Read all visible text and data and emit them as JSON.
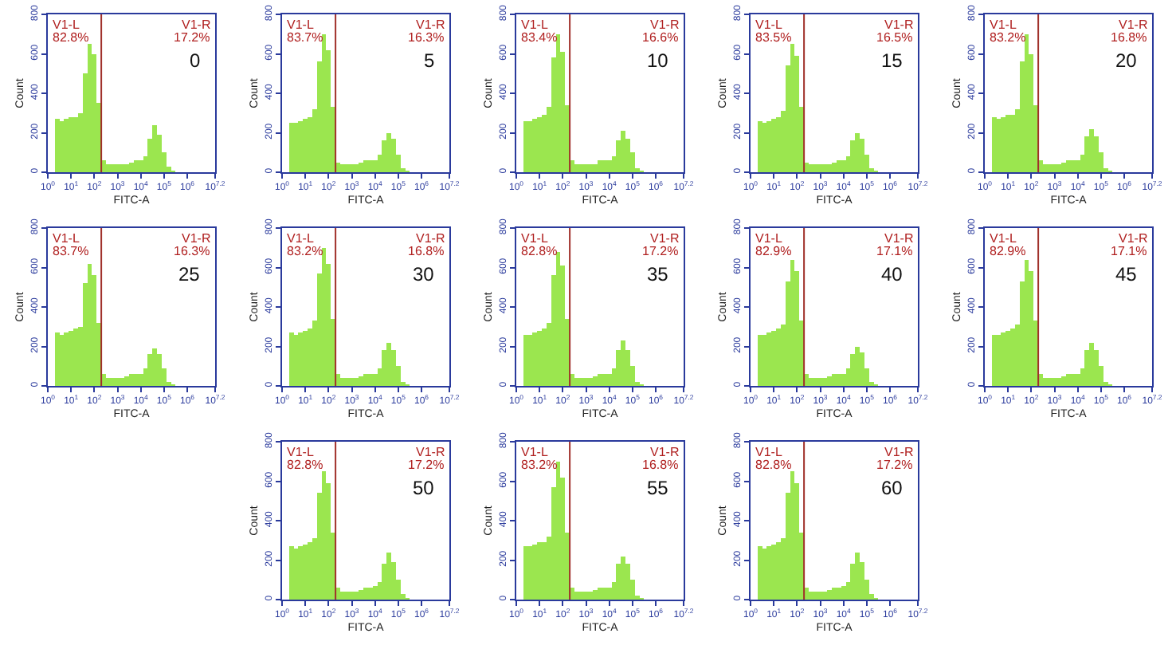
{
  "chart_data": [
    {
      "type": "histogram",
      "log": "x",
      "xlabel": "FITC-A",
      "ylabel": "Count",
      "color": "#9be64f",
      "bins": [
        2,
        3.2,
        5,
        7.9,
        12.6,
        20,
        31.6,
        50,
        79,
        126,
        200,
        316,
        501,
        794,
        1259,
        1995,
        3162,
        5012,
        7943,
        12589,
        19953,
        31623,
        50119,
        79433,
        125893,
        199526,
        316228
      ],
      "values": [
        270,
        260,
        270,
        280,
        280,
        300,
        500,
        650,
        600,
        350,
        60,
        40,
        40,
        40,
        40,
        40,
        50,
        60,
        60,
        80,
        170,
        240,
        190,
        100,
        30,
        10
      ],
      "xlim": [
        1,
        15848932
      ],
      "xticks": [
        {
          "value": 1,
          "label": "10$^{0}$"
        },
        {
          "value": 10,
          "label": "10$^{1}$"
        },
        {
          "value": 100,
          "label": "10$^{2}$"
        },
        {
          "value": 1000,
          "label": "10$^{3}$"
        },
        {
          "value": 10000,
          "label": "10$^{4}$"
        },
        {
          "value": 100000,
          "label": "10$^{5}$"
        },
        {
          "value": 1000000,
          "label": "10$^{6}$"
        },
        {
          "value": 15848932,
          "label": "10$^{7.2}$"
        }
      ],
      "ylim": [
        0,
        800
      ],
      "yticks": [
        0,
        200,
        400,
        600,
        800
      ],
      "ref_lines": [
        {
          "axis": "x",
          "value": 200,
          "color": "#a0302a"
        }
      ],
      "annotations": [
        "V1-L",
        "82.8%",
        "V1-R",
        "17.2%",
        "0"
      ]
    },
    {
      "type": "histogram",
      "log": "x",
      "xlabel": "FITC-A",
      "ylabel": "Count",
      "color": "#9be64f",
      "bins": [
        2,
        3.2,
        5,
        7.9,
        12.6,
        20,
        31.6,
        50,
        79,
        126,
        200,
        316,
        501,
        794,
        1259,
        1995,
        3162,
        5012,
        7943,
        12589,
        19953,
        31623,
        50119,
        79433,
        125893,
        199526,
        316228
      ],
      "values": [
        250,
        250,
        260,
        270,
        280,
        320,
        560,
        700,
        620,
        330,
        50,
        40,
        40,
        40,
        40,
        50,
        60,
        60,
        60,
        90,
        160,
        200,
        170,
        90,
        20,
        10
      ],
      "xlim": [
        1,
        15848932
      ],
      "xticks": [
        {
          "value": 1,
          "label": "10$^{0}$"
        },
        {
          "value": 10,
          "label": "10$^{1}$"
        },
        {
          "value": 100,
          "label": "10$^{2}$"
        },
        {
          "value": 1000,
          "label": "10$^{3}$"
        },
        {
          "value": 10000,
          "label": "10$^{4}$"
        },
        {
          "value": 100000,
          "label": "10$^{5}$"
        },
        {
          "value": 1000000,
          "label": "10$^{6}$"
        },
        {
          "value": 15848932,
          "label": "10$^{7.2}$"
        }
      ],
      "ylim": [
        0,
        800
      ],
      "yticks": [
        0,
        200,
        400,
        600,
        800
      ],
      "ref_lines": [
        {
          "axis": "x",
          "value": 200,
          "color": "#a0302a"
        }
      ],
      "annotations": [
        "V1-L",
        "83.7%",
        "V1-R",
        "16.3%",
        "5"
      ]
    },
    {
      "type": "histogram",
      "log": "x",
      "xlabel": "FITC-A",
      "ylabel": "Count",
      "color": "#9be64f",
      "bins": [
        2,
        3.2,
        5,
        7.9,
        12.6,
        20,
        31.6,
        50,
        79,
        126,
        200,
        316,
        501,
        794,
        1259,
        1995,
        3162,
        5012,
        7943,
        12589,
        19953,
        31623,
        50119,
        79433,
        125893,
        199526,
        316228
      ],
      "values": [
        260,
        260,
        270,
        280,
        290,
        330,
        580,
        700,
        610,
        340,
        60,
        40,
        40,
        40,
        40,
        40,
        60,
        60,
        60,
        80,
        160,
        210,
        170,
        100,
        20,
        10
      ],
      "xlim": [
        1,
        15848932
      ],
      "xticks": [
        {
          "value": 1,
          "label": "10$^{0}$"
        },
        {
          "value": 10,
          "label": "10$^{1}$"
        },
        {
          "value": 100,
          "label": "10$^{2}$"
        },
        {
          "value": 1000,
          "label": "10$^{3}$"
        },
        {
          "value": 10000,
          "label": "10$^{4}$"
        },
        {
          "value": 100000,
          "label": "10$^{5}$"
        },
        {
          "value": 1000000,
          "label": "10$^{6}$"
        },
        {
          "value": 15848932,
          "label": "10$^{7.2}$"
        }
      ],
      "ylim": [
        0,
        800
      ],
      "yticks": [
        0,
        200,
        400,
        600,
        800
      ],
      "ref_lines": [
        {
          "axis": "x",
          "value": 200,
          "color": "#a0302a"
        }
      ],
      "annotations": [
        "V1-L",
        "83.4%",
        "V1-R",
        "16.6%",
        "10"
      ]
    },
    {
      "type": "histogram",
      "log": "x",
      "xlabel": "FITC-A",
      "ylabel": "Count",
      "color": "#9be64f",
      "bins": [
        2,
        3.2,
        5,
        7.9,
        12.6,
        20,
        31.6,
        50,
        79,
        126,
        200,
        316,
        501,
        794,
        1259,
        1995,
        3162,
        5012,
        7943,
        12589,
        19953,
        31623,
        50119,
        79433,
        125893,
        199526,
        316228
      ],
      "values": [
        260,
        250,
        260,
        270,
        280,
        310,
        540,
        650,
        590,
        330,
        50,
        40,
        40,
        40,
        40,
        40,
        50,
        60,
        60,
        80,
        160,
        200,
        170,
        90,
        20,
        10
      ],
      "xlim": [
        1,
        15848932
      ],
      "xticks": [
        {
          "value": 1,
          "label": "10$^{0}$"
        },
        {
          "value": 10,
          "label": "10$^{1}$"
        },
        {
          "value": 100,
          "label": "10$^{2}$"
        },
        {
          "value": 1000,
          "label": "10$^{3}$"
        },
        {
          "value": 10000,
          "label": "10$^{4}$"
        },
        {
          "value": 100000,
          "label": "10$^{5}$"
        },
        {
          "value": 1000000,
          "label": "10$^{6}$"
        },
        {
          "value": 15848932,
          "label": "10$^{7.2}$"
        }
      ],
      "ylim": [
        0,
        800
      ],
      "yticks": [
        0,
        200,
        400,
        600,
        800
      ],
      "ref_lines": [
        {
          "axis": "x",
          "value": 200,
          "color": "#a0302a"
        }
      ],
      "annotations": [
        "V1-L",
        "83.5%",
        "V1-R",
        "16.5%",
        "15"
      ]
    },
    {
      "type": "histogram",
      "log": "x",
      "xlabel": "FITC-A",
      "ylabel": "Count",
      "color": "#9be64f",
      "bins": [
        2,
        3.2,
        5,
        7.9,
        12.6,
        20,
        31.6,
        50,
        79,
        126,
        200,
        316,
        501,
        794,
        1259,
        1995,
        3162,
        5012,
        7943,
        12589,
        19953,
        31623,
        50119,
        79433,
        125893,
        199526,
        316228
      ],
      "values": [
        280,
        270,
        280,
        290,
        290,
        320,
        560,
        700,
        600,
        340,
        60,
        40,
        40,
        40,
        40,
        50,
        60,
        60,
        60,
        90,
        180,
        220,
        180,
        100,
        20,
        10
      ],
      "xlim": [
        1,
        15848932
      ],
      "xticks": [
        {
          "value": 1,
          "label": "10$^{0}$"
        },
        {
          "value": 10,
          "label": "10$^{1}$"
        },
        {
          "value": 100,
          "label": "10$^{2}$"
        },
        {
          "value": 1000,
          "label": "10$^{3}$"
        },
        {
          "value": 10000,
          "label": "10$^{4}$"
        },
        {
          "value": 100000,
          "label": "10$^{5}$"
        },
        {
          "value": 1000000,
          "label": "10$^{6}$"
        },
        {
          "value": 15848932,
          "label": "10$^{7.2}$"
        }
      ],
      "ylim": [
        0,
        800
      ],
      "yticks": [
        0,
        200,
        400,
        600,
        800
      ],
      "ref_lines": [
        {
          "axis": "x",
          "value": 200,
          "color": "#a0302a"
        }
      ],
      "annotations": [
        "V1-L",
        "83.2%",
        "V1-R",
        "16.8%",
        "20"
      ]
    },
    {
      "type": "histogram",
      "log": "x",
      "xlabel": "FITC-A",
      "ylabel": "Count",
      "color": "#9be64f",
      "bins": [
        2,
        3.2,
        5,
        7.9,
        12.6,
        20,
        31.6,
        50,
        79,
        126,
        200,
        316,
        501,
        794,
        1259,
        1995,
        3162,
        5012,
        7943,
        12589,
        19953,
        31623,
        50119,
        79433,
        125893,
        199526,
        316228
      ],
      "values": [
        270,
        260,
        270,
        280,
        290,
        300,
        520,
        620,
        560,
        320,
        60,
        40,
        40,
        40,
        40,
        50,
        60,
        60,
        60,
        90,
        160,
        190,
        160,
        90,
        20,
        10
      ],
      "xlim": [
        1,
        15848932
      ],
      "xticks": [
        {
          "value": 1,
          "label": "10$^{0}$"
        },
        {
          "value": 10,
          "label": "10$^{1}$"
        },
        {
          "value": 100,
          "label": "10$^{2}$"
        },
        {
          "value": 1000,
          "label": "10$^{3}$"
        },
        {
          "value": 10000,
          "label": "10$^{4}$"
        },
        {
          "value": 100000,
          "label": "10$^{5}$"
        },
        {
          "value": 1000000,
          "label": "10$^{6}$"
        },
        {
          "value": 15848932,
          "label": "10$^{7.2}$"
        }
      ],
      "ylim": [
        0,
        800
      ],
      "yticks": [
        0,
        200,
        400,
        600,
        800
      ],
      "ref_lines": [
        {
          "axis": "x",
          "value": 200,
          "color": "#a0302a"
        }
      ],
      "annotations": [
        "V1-L",
        "83.7%",
        "V1-R",
        "16.3%",
        "25"
      ]
    },
    {
      "type": "histogram",
      "log": "x",
      "xlabel": "FITC-A",
      "ylabel": "Count",
      "color": "#9be64f",
      "bins": [
        2,
        3.2,
        5,
        7.9,
        12.6,
        20,
        31.6,
        50,
        79,
        126,
        200,
        316,
        501,
        794,
        1259,
        1995,
        3162,
        5012,
        7943,
        12589,
        19953,
        31623,
        50119,
        79433,
        125893,
        199526,
        316228
      ],
      "values": [
        270,
        260,
        270,
        280,
        290,
        330,
        570,
        700,
        620,
        340,
        60,
        40,
        40,
        40,
        40,
        50,
        60,
        60,
        60,
        90,
        180,
        220,
        180,
        100,
        20,
        10
      ],
      "xlim": [
        1,
        15848932
      ],
      "xticks": [
        {
          "value": 1,
          "label": "10$^{0}$"
        },
        {
          "value": 10,
          "label": "10$^{1}$"
        },
        {
          "value": 100,
          "label": "10$^{2}$"
        },
        {
          "value": 1000,
          "label": "10$^{3}$"
        },
        {
          "value": 10000,
          "label": "10$^{4}$"
        },
        {
          "value": 100000,
          "label": "10$^{5}$"
        },
        {
          "value": 1000000,
          "label": "10$^{6}$"
        },
        {
          "value": 15848932,
          "label": "10$^{7.2}$"
        }
      ],
      "ylim": [
        0,
        800
      ],
      "yticks": [
        0,
        200,
        400,
        600,
        800
      ],
      "ref_lines": [
        {
          "axis": "x",
          "value": 200,
          "color": "#a0302a"
        }
      ],
      "annotations": [
        "V1-L",
        "83.2%",
        "V1-R",
        "16.8%",
        "30"
      ]
    },
    {
      "type": "histogram",
      "log": "x",
      "xlabel": "FITC-A",
      "ylabel": "Count",
      "color": "#9be64f",
      "bins": [
        2,
        3.2,
        5,
        7.9,
        12.6,
        20,
        31.6,
        50,
        79,
        126,
        200,
        316,
        501,
        794,
        1259,
        1995,
        3162,
        5012,
        7943,
        12589,
        19953,
        31623,
        50119,
        79433,
        125893,
        199526,
        316228
      ],
      "values": [
        260,
        260,
        270,
        280,
        290,
        320,
        560,
        680,
        610,
        340,
        60,
        40,
        40,
        40,
        40,
        50,
        60,
        60,
        60,
        90,
        180,
        230,
        180,
        100,
        20,
        10
      ],
      "xlim": [
        1,
        15848932
      ],
      "xticks": [
        {
          "value": 1,
          "label": "10$^{0}$"
        },
        {
          "value": 10,
          "label": "10$^{1}$"
        },
        {
          "value": 100,
          "label": "10$^{2}$"
        },
        {
          "value": 1000,
          "label": "10$^{3}$"
        },
        {
          "value": 10000,
          "label": "10$^{4}$"
        },
        {
          "value": 100000,
          "label": "10$^{5}$"
        },
        {
          "value": 1000000,
          "label": "10$^{6}$"
        },
        {
          "value": 15848932,
          "label": "10$^{7.2}$"
        }
      ],
      "ylim": [
        0,
        800
      ],
      "yticks": [
        0,
        200,
        400,
        600,
        800
      ],
      "ref_lines": [
        {
          "axis": "x",
          "value": 200,
          "color": "#a0302a"
        }
      ],
      "annotations": [
        "V1-L",
        "82.8%",
        "V1-R",
        "17.2%",
        "35"
      ]
    },
    {
      "type": "histogram",
      "log": "x",
      "xlabel": "FITC-A",
      "ylabel": "Count",
      "color": "#9be64f",
      "bins": [
        2,
        3.2,
        5,
        7.9,
        12.6,
        20,
        31.6,
        50,
        79,
        126,
        200,
        316,
        501,
        794,
        1259,
        1995,
        3162,
        5012,
        7943,
        12589,
        19953,
        31623,
        50119,
        79433,
        125893,
        199526,
        316228
      ],
      "values": [
        260,
        260,
        270,
        280,
        290,
        310,
        530,
        640,
        580,
        330,
        60,
        40,
        40,
        40,
        40,
        50,
        60,
        60,
        60,
        90,
        160,
        200,
        170,
        90,
        20,
        10
      ],
      "xlim": [
        1,
        15848932
      ],
      "xticks": [
        {
          "value": 1,
          "label": "10$^{0}$"
        },
        {
          "value": 10,
          "label": "10$^{1}$"
        },
        {
          "value": 100,
          "label": "10$^{2}$"
        },
        {
          "value": 1000,
          "label": "10$^{3}$"
        },
        {
          "value": 10000,
          "label": "10$^{4}$"
        },
        {
          "value": 100000,
          "label": "10$^{5}$"
        },
        {
          "value": 1000000,
          "label": "10$^{6}$"
        },
        {
          "value": 15848932,
          "label": "10$^{7.2}$"
        }
      ],
      "ylim": [
        0,
        800
      ],
      "yticks": [
        0,
        200,
        400,
        600,
        800
      ],
      "ref_lines": [
        {
          "axis": "x",
          "value": 200,
          "color": "#a0302a"
        }
      ],
      "annotations": [
        "V1-L",
        "82.9%",
        "V1-R",
        "17.1%",
        "40"
      ]
    },
    {
      "type": "histogram",
      "log": "x",
      "xlabel": "FITC-A",
      "ylabel": "Count",
      "color": "#9be64f",
      "bins": [
        2,
        3.2,
        5,
        7.9,
        12.6,
        20,
        31.6,
        50,
        79,
        126,
        200,
        316,
        501,
        794,
        1259,
        1995,
        3162,
        5012,
        7943,
        12589,
        19953,
        31623,
        50119,
        79433,
        125893,
        199526,
        316228
      ],
      "values": [
        260,
        260,
        270,
        280,
        290,
        310,
        530,
        640,
        580,
        330,
        60,
        40,
        40,
        40,
        40,
        50,
        60,
        60,
        60,
        90,
        180,
        220,
        180,
        100,
        20,
        10
      ],
      "xlim": [
        1,
        15848932
      ],
      "xticks": [
        {
          "value": 1,
          "label": "10$^{0}$"
        },
        {
          "value": 10,
          "label": "10$^{1}$"
        },
        {
          "value": 100,
          "label": "10$^{2}$"
        },
        {
          "value": 1000,
          "label": "10$^{3}$"
        },
        {
          "value": 10000,
          "label": "10$^{4}$"
        },
        {
          "value": 100000,
          "label": "10$^{5}$"
        },
        {
          "value": 1000000,
          "label": "10$^{6}$"
        },
        {
          "value": 15848932,
          "label": "10$^{7.2}$"
        }
      ],
      "ylim": [
        0,
        800
      ],
      "yticks": [
        0,
        200,
        400,
        600,
        800
      ],
      "ref_lines": [
        {
          "axis": "x",
          "value": 200,
          "color": "#a0302a"
        }
      ],
      "annotations": [
        "V1-L",
        "82.9%",
        "V1-R",
        "17.1%",
        "45"
      ]
    },
    {
      "type": "histogram",
      "log": "x",
      "xlabel": "FITC-A",
      "ylabel": "Count",
      "color": "#9be64f",
      "bins": [
        2,
        3.2,
        5,
        7.9,
        12.6,
        20,
        31.6,
        50,
        79,
        126,
        200,
        316,
        501,
        794,
        1259,
        1995,
        3162,
        5012,
        7943,
        12589,
        19953,
        31623,
        50119,
        79433,
        125893,
        199526,
        316228
      ],
      "values": [
        270,
        260,
        270,
        280,
        290,
        310,
        540,
        650,
        590,
        340,
        60,
        40,
        40,
        40,
        40,
        50,
        60,
        60,
        70,
        90,
        180,
        240,
        190,
        100,
        30,
        10
      ],
      "xlim": [
        1,
        15848932
      ],
      "xticks": [
        {
          "value": 1,
          "label": "10$^{0}$"
        },
        {
          "value": 10,
          "label": "10$^{1}$"
        },
        {
          "value": 100,
          "label": "10$^{2}$"
        },
        {
          "value": 1000,
          "label": "10$^{3}$"
        },
        {
          "value": 10000,
          "label": "10$^{4}$"
        },
        {
          "value": 100000,
          "label": "10$^{5}$"
        },
        {
          "value": 1000000,
          "label": "10$^{6}$"
        },
        {
          "value": 15848932,
          "label": "10$^{7.2}$"
        }
      ],
      "ylim": [
        0,
        800
      ],
      "yticks": [
        0,
        200,
        400,
        600,
        800
      ],
      "ref_lines": [
        {
          "axis": "x",
          "value": 200,
          "color": "#a0302a"
        }
      ],
      "annotations": [
        "V1-L",
        "82.8%",
        "V1-R",
        "17.2%",
        "50"
      ]
    },
    {
      "type": "histogram",
      "log": "x",
      "xlabel": "FITC-A",
      "ylabel": "Count",
      "color": "#9be64f",
      "bins": [
        2,
        3.2,
        5,
        7.9,
        12.6,
        20,
        31.6,
        50,
        79,
        126,
        200,
        316,
        501,
        794,
        1259,
        1995,
        3162,
        5012,
        7943,
        12589,
        19953,
        31623,
        50119,
        79433,
        125893,
        199526,
        316228
      ],
      "values": [
        270,
        270,
        280,
        290,
        290,
        320,
        570,
        700,
        620,
        340,
        60,
        40,
        40,
        40,
        40,
        50,
        60,
        60,
        60,
        90,
        180,
        220,
        180,
        100,
        20,
        10
      ],
      "xlim": [
        1,
        15848932
      ],
      "xticks": [
        {
          "value": 1,
          "label": "10$^{0}$"
        },
        {
          "value": 10,
          "label": "10$^{1}$"
        },
        {
          "value": 100,
          "label": "10$^{2}$"
        },
        {
          "value": 1000,
          "label": "10$^{3}$"
        },
        {
          "value": 10000,
          "label": "10$^{4}$"
        },
        {
          "value": 100000,
          "label": "10$^{5}$"
        },
        {
          "value": 1000000,
          "label": "10$^{6}$"
        },
        {
          "value": 15848932,
          "label": "10$^{7.2}$"
        }
      ],
      "ylim": [
        0,
        800
      ],
      "yticks": [
        0,
        200,
        400,
        600,
        800
      ],
      "ref_lines": [
        {
          "axis": "x",
          "value": 200,
          "color": "#a0302a"
        }
      ],
      "annotations": [
        "V1-L",
        "83.2%",
        "V1-R",
        "16.8%",
        "55"
      ]
    },
    {
      "type": "histogram",
      "log": "x",
      "xlabel": "FITC-A",
      "ylabel": "Count",
      "color": "#9be64f",
      "bins": [
        2,
        3.2,
        5,
        7.9,
        12.6,
        20,
        31.6,
        50,
        79,
        126,
        200,
        316,
        501,
        794,
        1259,
        1995,
        3162,
        5012,
        7943,
        12589,
        19953,
        31623,
        50119,
        79433,
        125893,
        199526,
        316228
      ],
      "values": [
        270,
        260,
        270,
        280,
        290,
        310,
        540,
        650,
        590,
        340,
        60,
        40,
        40,
        40,
        40,
        50,
        60,
        60,
        70,
        90,
        180,
        240,
        190,
        100,
        30,
        10
      ],
      "xlim": [
        1,
        15848932
      ],
      "xticks": [
        {
          "value": 1,
          "label": "10$^{0}$"
        },
        {
          "value": 10,
          "label": "10$^{1}$"
        },
        {
          "value": 100,
          "label": "10$^{2}$"
        },
        {
          "value": 1000,
          "label": "10$^{3}$"
        },
        {
          "value": 10000,
          "label": "10$^{4}$"
        },
        {
          "value": 100000,
          "label": "10$^{5}$"
        },
        {
          "value": 1000000,
          "label": "10$^{6}$"
        },
        {
          "value": 15848932,
          "label": "10$^{7.2}$"
        }
      ],
      "ylim": [
        0,
        800
      ],
      "yticks": [
        0,
        200,
        400,
        600,
        800
      ],
      "ref_lines": [
        {
          "axis": "x",
          "value": 200,
          "color": "#a0302a"
        }
      ],
      "annotations": [
        "V1-L",
        "82.8%",
        "V1-R",
        "17.2%",
        "60"
      ]
    }
  ]
}
